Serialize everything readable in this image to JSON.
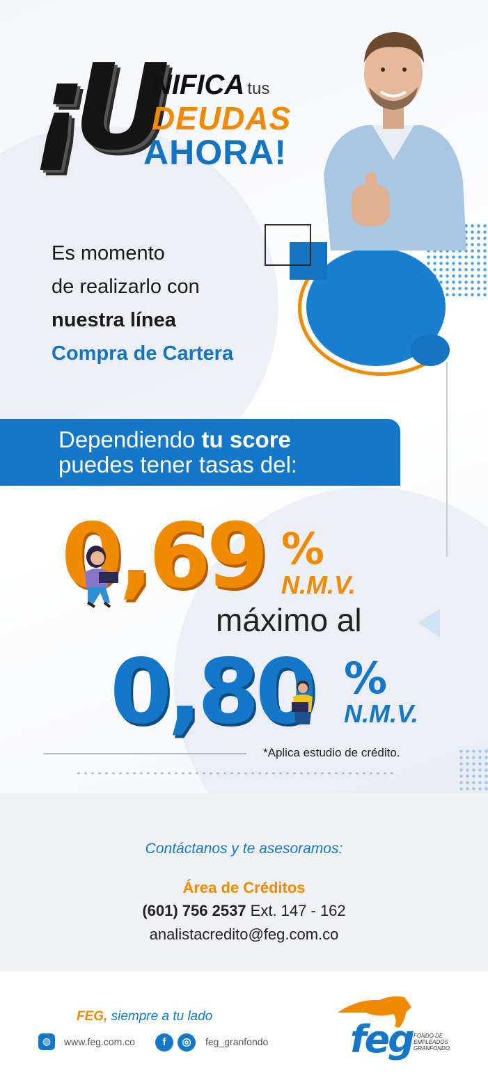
{
  "headline": {
    "big_letters": "¡U",
    "line1": "NIFICA",
    "line1_small": "tus",
    "line2": "DEUDAS",
    "line3": "AHORA!"
  },
  "intro": {
    "line1": "Es momento",
    "line2": "de realizarlo con",
    "line3": "nuestra línea",
    "line4": "Compra de Cartera"
  },
  "banner": {
    "line1_prefix": "Dependiendo ",
    "line1_bold": "tu score",
    "line2": "puedes tener tasas del:"
  },
  "rates": {
    "min_value": "0,69",
    "min_pct": "%",
    "min_unit": "N.M.V.",
    "connector": "máximo al",
    "max_value": "0,80",
    "max_pct": "%",
    "max_unit": "N.M.V.",
    "disclaimer": "*Aplica estudio de crédito."
  },
  "contact": {
    "title": "Contáctanos y te asesoramos:",
    "area": "Área de Créditos",
    "phone": "(601) 756 2537",
    "extension": " Ext. 147 - 162",
    "email": "analistacredito@feg.com.co"
  },
  "footer": {
    "slogan_brand": "FEG,",
    "slogan_rest": " siempre a tu lado",
    "website": "www.feg.com.co",
    "social_handle": "feg_granfondo",
    "logo_text": "feg",
    "logo_sub1": "FONDO DE",
    "logo_sub2": "EMPLEADOS",
    "logo_sub3": "GRANFONDO"
  },
  "icons": [
    "web-icon",
    "facebook-icon",
    "instagram-icon"
  ],
  "colors": {
    "blue": "#1577c7",
    "orange": "#f08a00",
    "dark": "#141414"
  }
}
